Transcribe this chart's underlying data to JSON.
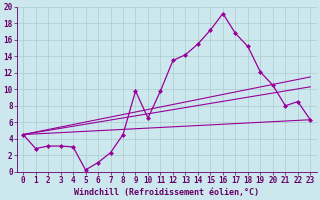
{
  "xlabel": "Windchill (Refroidissement éolien,°C)",
  "bg_color": "#cce8ee",
  "line_color": "#990099",
  "grid_color": "#aacccc",
  "xlim": [
    -0.5,
    23.5
  ],
  "ylim": [
    0,
    20
  ],
  "ytick_max": 18,
  "ytick_step": 2,
  "line1_x": [
    0,
    1,
    2,
    3,
    4,
    5,
    6,
    7,
    8,
    9,
    10,
    11,
    12,
    13,
    14,
    15,
    16,
    17,
    18,
    19,
    20,
    21,
    22,
    23
  ],
  "line1_y": [
    4.5,
    2.8,
    3.1,
    3.1,
    3.0,
    0.2,
    1.1,
    2.3,
    4.5,
    9.8,
    6.5,
    9.8,
    13.5,
    14.2,
    15.5,
    17.2,
    19.2,
    16.8,
    15.2,
    12.1,
    10.5,
    8.0,
    8.5,
    6.3
  ],
  "line2_x": [
    0,
    23
  ],
  "line2_y": [
    4.5,
    11.5
  ],
  "line3_x": [
    0,
    23
  ],
  "line3_y": [
    4.5,
    10.3
  ],
  "line4_x": [
    0,
    23
  ],
  "line4_y": [
    4.5,
    6.3
  ],
  "text_color": "#660066",
  "marker": "D",
  "marker_size": 2.5,
  "tick_fontsize": 5.5,
  "xlabel_fontsize": 6.0
}
